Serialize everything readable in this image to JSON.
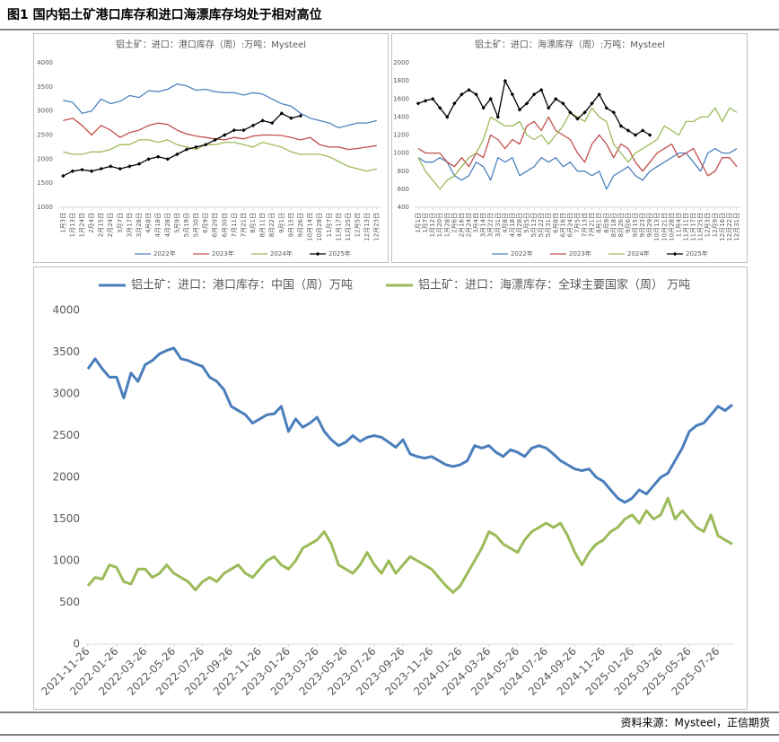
{
  "figure_title": "图1 国内铝土矿港口库存和进口海漂库存均处于相对高位",
  "source": "资料来源：Mysteel，正信期货",
  "chart_data": [
    {
      "type": "line",
      "title": "铝土矿：进口：港口库存（周）:万吨：Mysteel",
      "categories": [
        "1月3日",
        "1月13日",
        "1月24日",
        "2月4日",
        "2月15日",
        "2月24日",
        "3月7日",
        "3月17日",
        "3月28日",
        "4月8日",
        "4月18日",
        "4月28日",
        "5月9日",
        "5月19日",
        "5月30日",
        "6月9日",
        "6月20日",
        "6月30日",
        "7月11日",
        "7月21日",
        "8月1日",
        "8月11日",
        "8月22日",
        "9月1日",
        "9月15日",
        "9月26日",
        "10月14日",
        "10月28日",
        "11月7日",
        "11月17日",
        "11月25日",
        "12月5日",
        "12月13日",
        "12月23日"
      ],
      "series": [
        {
          "name": "2022年",
          "color": "#4f81bd",
          "values": [
            3220,
            3180,
            2950,
            3000,
            3250,
            3150,
            3200,
            3320,
            3280,
            3420,
            3400,
            3450,
            3560,
            3520,
            3430,
            3450,
            3400,
            3380,
            3380,
            3330,
            3380,
            3350,
            3250,
            3150,
            3100,
            2950,
            2850,
            2800,
            2750,
            2650,
            2700,
            2750,
            2750,
            2800
          ]
        },
        {
          "name": "2023年",
          "color": "#c0504d",
          "values": [
            2800,
            2850,
            2700,
            2500,
            2700,
            2600,
            2450,
            2550,
            2600,
            2700,
            2750,
            2720,
            2600,
            2520,
            2480,
            2450,
            2420,
            2400,
            2450,
            2420,
            2480,
            2500,
            2500,
            2490,
            2450,
            2400,
            2450,
            2300,
            2250,
            2250,
            2200,
            2220,
            2250,
            2280
          ]
        },
        {
          "name": "2024年",
          "color": "#9bbb59",
          "values": [
            2150,
            2100,
            2100,
            2150,
            2150,
            2200,
            2300,
            2300,
            2400,
            2400,
            2350,
            2400,
            2300,
            2250,
            2200,
            2300,
            2300,
            2350,
            2350,
            2300,
            2250,
            2350,
            2300,
            2250,
            2150,
            2100,
            2100,
            2100,
            2050,
            1950,
            1850,
            1800,
            1750,
            1800
          ]
        },
        {
          "name": "2025年",
          "color": "#000000",
          "marker": "diamond",
          "values": [
            1650,
            1750,
            1780,
            1750,
            1800,
            1850,
            1800,
            1850,
            1900,
            2000,
            2050,
            2000,
            2100,
            2200,
            2250,
            2300,
            2400,
            2500,
            2600,
            2600,
            2700,
            2800,
            2750,
            2950,
            2850,
            2900,
            null,
            null,
            null,
            null,
            null,
            null,
            null,
            null
          ]
        }
      ],
      "ylim": [
        1000,
        4000
      ],
      "yticks": [
        1000,
        1500,
        2000,
        2500,
        3000,
        3500,
        4000
      ],
      "grid": false,
      "legend": "bottom"
    },
    {
      "type": "line",
      "title": "铝土矿：进口：海漂库存（周）:万吨：Mysteel",
      "categories": [
        "1月1日",
        "1月7日",
        "1月12日",
        "1月20日",
        "1月28日",
        "2月6日",
        "2月16日",
        "2月24日",
        "3月4日",
        "3月14日",
        "3月22日",
        "3月31日",
        "4月8日",
        "4月18日",
        "4月28日",
        "5月5日",
        "5月13日",
        "5月22日",
        "5月31日",
        "6月8日",
        "6月16日",
        "6月24日",
        "7月5日",
        "7月13日",
        "7月21日",
        "8月1日",
        "8月9日",
        "8月18日",
        "8月26日",
        "9月6日",
        "9月15日",
        "9月23日",
        "9月29日",
        "10月13日",
        "10月21日",
        "10月28日",
        "11月4日",
        "11月11日",
        "11月17日",
        "11月25日",
        "12月3日",
        "12月9日",
        "12月16日",
        "12月22日",
        "12月31日"
      ],
      "series": [
        {
          "name": "2022年",
          "color": "#4f81bd",
          "values": [
            950,
            900,
            900,
            950,
            900,
            750,
            700,
            750,
            900,
            850,
            700,
            950,
            900,
            950,
            750,
            800,
            850,
            950,
            900,
            950,
            850,
            900,
            800,
            800,
            750,
            800,
            600,
            750,
            800,
            850,
            750,
            700,
            800,
            850,
            900,
            950,
            1000,
            1000,
            900,
            800,
            1000,
            1050,
            1000,
            1000,
            1050
          ]
        },
        {
          "name": "2023年",
          "color": "#c0504d",
          "values": [
            1050,
            1000,
            1000,
            1000,
            900,
            850,
            950,
            850,
            1000,
            950,
            1200,
            1150,
            1050,
            1150,
            1100,
            1300,
            1350,
            1250,
            1400,
            1250,
            1200,
            1150,
            1000,
            900,
            1100,
            1200,
            1100,
            950,
            1100,
            1050,
            900,
            800,
            900,
            1000,
            1050,
            1100,
            950,
            1000,
            1050,
            900,
            750,
            800,
            950,
            950,
            850
          ]
        },
        {
          "name": "2024年",
          "color": "#9bbb59",
          "values": [
            950,
            800,
            700,
            600,
            700,
            750,
            850,
            950,
            1000,
            1150,
            1400,
            1350,
            1300,
            1300,
            1350,
            1200,
            1150,
            1200,
            1100,
            1200,
            1300,
            1450,
            1400,
            1350,
            1500,
            1400,
            1350,
            1100,
            1000,
            900,
            1000,
            1050,
            1100,
            1150,
            1300,
            1250,
            1200,
            1350,
            1350,
            1400,
            1400,
            1500,
            1350,
            1500,
            1450
          ]
        },
        {
          "name": "2025年",
          "color": "#000000",
          "marker": "diamond",
          "values": [
            1550,
            1580,
            1600,
            1500,
            1400,
            1550,
            1650,
            1700,
            1650,
            1500,
            1600,
            1400,
            1800,
            1650,
            1480,
            1550,
            1650,
            1700,
            1500,
            1600,
            1550,
            1450,
            1380,
            1450,
            1550,
            1650,
            1500,
            1450,
            1300,
            1250,
            1200,
            1250,
            1200,
            null,
            null,
            null,
            null,
            null,
            null,
            null,
            null,
            null,
            null,
            null,
            null
          ]
        }
      ],
      "ylim": [
        400,
        2000
      ],
      "yticks": [
        400,
        600,
        800,
        1000,
        1200,
        1400,
        1600,
        1800,
        2000
      ],
      "grid": false,
      "legend": "bottom"
    },
    {
      "type": "line",
      "categories": [
        "2021-11-26",
        null,
        null,
        null,
        "2022-01-26",
        null,
        null,
        null,
        "2022-03-26",
        null,
        null,
        null,
        "2022-05-26",
        null,
        null,
        null,
        "2022-07-26",
        null,
        null,
        null,
        "2022-09-26",
        null,
        null,
        null,
        "2022-11-26",
        null,
        null,
        null,
        "2023-01-26",
        null,
        null,
        null,
        "2023-03-26",
        null,
        null,
        null,
        "2023-05-26",
        null,
        null,
        null,
        "2023-07-26",
        null,
        null,
        null,
        "2023-09-26",
        null,
        null,
        null,
        "2023-11-26",
        null,
        null,
        null,
        "2024-01-26",
        null,
        null,
        null,
        "2024-03-26",
        null,
        null,
        null,
        "2024-05-26",
        null,
        null,
        null,
        "2024-07-26",
        null,
        null,
        null,
        "2024-09-26",
        null,
        null,
        null,
        "2024-11-26",
        null,
        null,
        null,
        "2025-01-26",
        null,
        null,
        null,
        "2025-03-26",
        null,
        null,
        null,
        "2025-05-26",
        null,
        null,
        null,
        "2025-07-26",
        null,
        null
      ],
      "series": [
        {
          "name": "铝土矿：进口：港口库存：中国（周）万吨",
          "color": "#4a7ebb",
          "values": [
            3300,
            3420,
            3300,
            3200,
            3200,
            2950,
            3250,
            3150,
            3350,
            3400,
            3480,
            3520,
            3550,
            3420,
            3400,
            3360,
            3330,
            3200,
            3150,
            3050,
            2850,
            2800,
            2750,
            2650,
            2700,
            2750,
            2760,
            2850,
            2550,
            2700,
            2600,
            2650,
            2720,
            2550,
            2450,
            2380,
            2420,
            2500,
            2430,
            2480,
            2500,
            2480,
            2420,
            2360,
            2450,
            2280,
            2250,
            2230,
            2250,
            2200,
            2150,
            2130,
            2150,
            2200,
            2380,
            2350,
            2380,
            2300,
            2250,
            2330,
            2300,
            2250,
            2350,
            2380,
            2350,
            2280,
            2200,
            2150,
            2100,
            2080,
            2100,
            2000,
            1950,
            1850,
            1750,
            1700,
            1750,
            1850,
            1800,
            1900,
            2000,
            2050,
            2200,
            2350,
            2550,
            2620,
            2650,
            2750,
            2850,
            2800,
            2870
          ]
        },
        {
          "name": "铝土矿：进口：海漂库存：全球主要国家（周） 万吨",
          "color": "#9bbb59",
          "values": [
            700,
            800,
            780,
            950,
            920,
            750,
            720,
            900,
            900,
            800,
            850,
            950,
            850,
            800,
            750,
            650,
            750,
            800,
            750,
            850,
            900,
            950,
            850,
            800,
            900,
            1000,
            1050,
            950,
            900,
            1000,
            1150,
            1200,
            1250,
            1350,
            1200,
            950,
            900,
            850,
            950,
            1100,
            950,
            850,
            1000,
            850,
            950,
            1050,
            1000,
            950,
            900,
            800,
            700,
            620,
            700,
            850,
            1000,
            1150,
            1350,
            1300,
            1200,
            1150,
            1100,
            1250,
            1350,
            1400,
            1450,
            1400,
            1450,
            1300,
            1100,
            950,
            1100,
            1200,
            1250,
            1350,
            1400,
            1500,
            1550,
            1450,
            1600,
            1500,
            1550,
            1750,
            1500,
            1600,
            1500,
            1400,
            1350,
            1550,
            1300,
            1250,
            1200
          ]
        }
      ],
      "ylim": [
        0,
        4000
      ],
      "yticks": [
        0,
        500,
        1000,
        1500,
        2000,
        2500,
        3000,
        3500,
        4000
      ],
      "grid": false,
      "legend": "top"
    }
  ]
}
